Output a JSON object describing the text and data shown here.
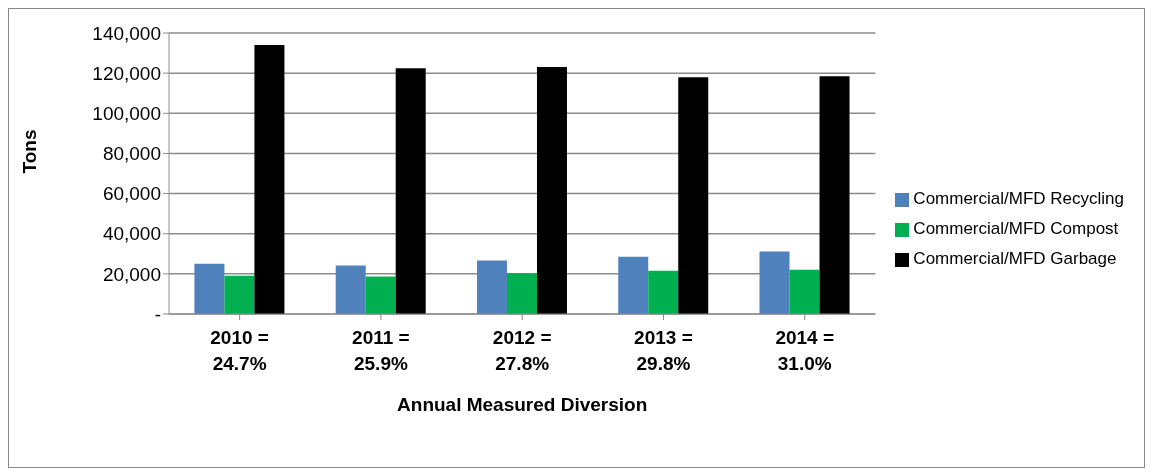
{
  "chart_data": {
    "type": "bar",
    "xlabel": "Annual Measured Diversion",
    "ylabel": "Tons",
    "categories": [
      "2010 = 24.7%",
      "2011 = 25.9%",
      "2012 = 27.8%",
      "2013 = 29.8%",
      "2014 = 31.0%"
    ],
    "series": [
      {
        "name": "Commercial/MFD Recycling",
        "color": "#4f81bd",
        "values": [
          25000,
          24200,
          26700,
          28500,
          31200
        ]
      },
      {
        "name": "Commercial/MFD Compost",
        "color": "#00b050",
        "values": [
          19000,
          18700,
          20300,
          21500,
          22000
        ]
      },
      {
        "name": "Commercial/MFD Garbage",
        "color": "#000000",
        "values": [
          134000,
          122500,
          123000,
          118000,
          118500
        ]
      }
    ],
    "ylim": [
      0,
      140000
    ],
    "yticks": [
      {
        "value": 0,
        "label": "-"
      },
      {
        "value": 20000,
        "label": "20,000"
      },
      {
        "value": 40000,
        "label": "40,000"
      },
      {
        "value": 60000,
        "label": "60,000"
      },
      {
        "value": 80000,
        "label": "80,000"
      },
      {
        "value": 100000,
        "label": "100,000"
      },
      {
        "value": 120000,
        "label": "120,000"
      },
      {
        "value": 140000,
        "label": "140,000"
      }
    ],
    "grid": "y",
    "legend": "right"
  }
}
